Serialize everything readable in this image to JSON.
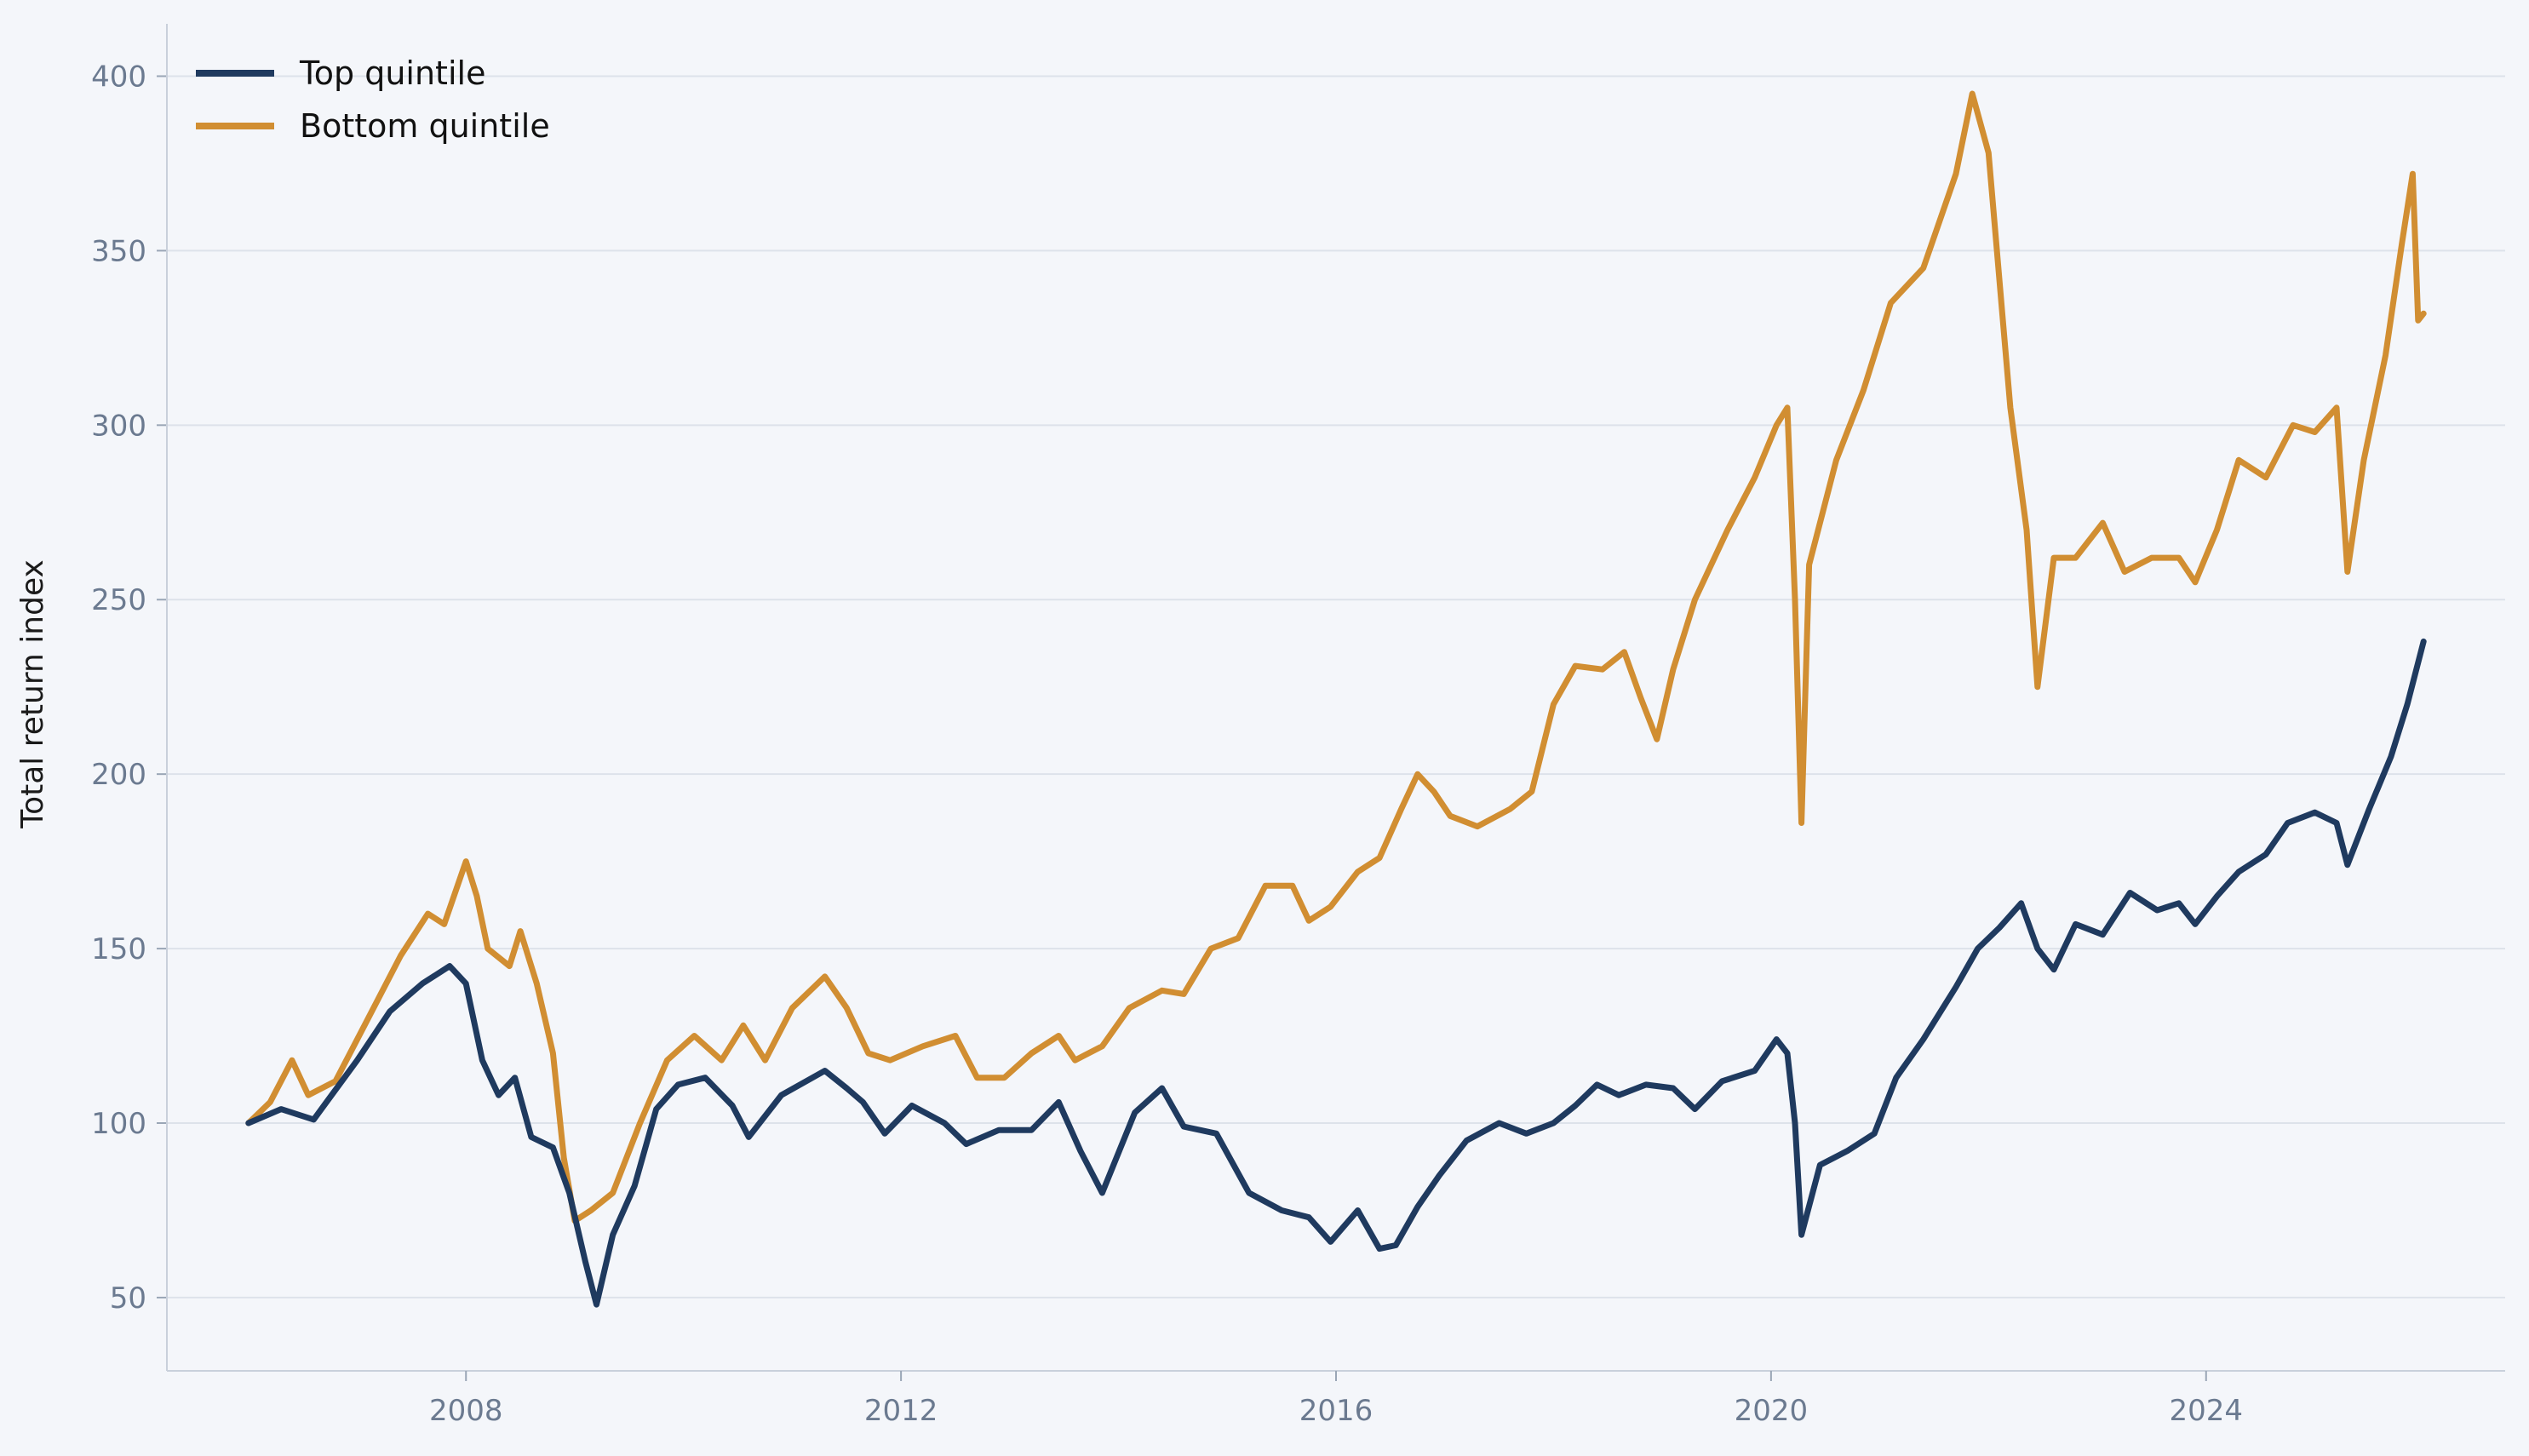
{
  "chart_data": {
    "type": "line",
    "title": "",
    "xlabel": "",
    "ylabel": "Total return index",
    "xlim": [
      2005.25,
      2026.75
    ],
    "ylim": [
      29,
      415
    ],
    "xticks": [
      2008,
      2012,
      2016,
      2020,
      2024
    ],
    "xtick_labels": [
      "2008",
      "2012",
      "2016",
      "2020",
      "2024"
    ],
    "yticks": [
      50,
      100,
      150,
      200,
      250,
      300,
      350,
      400
    ],
    "ytick_labels": [
      "50",
      "100",
      "150",
      "200",
      "250",
      "300",
      "350",
      "400"
    ],
    "grid": "horizontal",
    "legend_position": "top-left",
    "series": [
      {
        "name": "Top quintile",
        "color": "#1f3a5f",
        "points": [
          [
            2006.0,
            100
          ],
          [
            2006.3,
            104
          ],
          [
            2006.6,
            101
          ],
          [
            2007.0,
            118
          ],
          [
            2007.3,
            132
          ],
          [
            2007.6,
            140
          ],
          [
            2007.85,
            145
          ],
          [
            2008.0,
            140
          ],
          [
            2008.15,
            118
          ],
          [
            2008.3,
            108
          ],
          [
            2008.45,
            113
          ],
          [
            2008.6,
            96
          ],
          [
            2008.8,
            93
          ],
          [
            2008.95,
            80
          ],
          [
            2009.1,
            60
          ],
          [
            2009.2,
            48
          ],
          [
            2009.35,
            68
          ],
          [
            2009.55,
            82
          ],
          [
            2009.75,
            104
          ],
          [
            2009.95,
            111
          ],
          [
            2010.2,
            113
          ],
          [
            2010.45,
            105
          ],
          [
            2010.6,
            96
          ],
          [
            2010.9,
            108
          ],
          [
            2011.3,
            115
          ],
          [
            2011.5,
            110
          ],
          [
            2011.65,
            106
          ],
          [
            2011.85,
            97
          ],
          [
            2012.1,
            105
          ],
          [
            2012.4,
            100
          ],
          [
            2012.6,
            94
          ],
          [
            2012.9,
            98
          ],
          [
            2013.2,
            98
          ],
          [
            2013.45,
            106
          ],
          [
            2013.65,
            92
          ],
          [
            2013.85,
            80
          ],
          [
            2014.15,
            103
          ],
          [
            2014.4,
            110
          ],
          [
            2014.6,
            99
          ],
          [
            2014.9,
            97
          ],
          [
            2015.2,
            80
          ],
          [
            2015.5,
            75
          ],
          [
            2015.75,
            73
          ],
          [
            2015.95,
            66
          ],
          [
            2016.2,
            75
          ],
          [
            2016.4,
            64
          ],
          [
            2016.55,
            65
          ],
          [
            2016.75,
            76
          ],
          [
            2016.95,
            85
          ],
          [
            2017.2,
            95
          ],
          [
            2017.5,
            100
          ],
          [
            2017.75,
            97
          ],
          [
            2018.0,
            100
          ],
          [
            2018.2,
            105
          ],
          [
            2018.4,
            111
          ],
          [
            2018.6,
            108
          ],
          [
            2018.85,
            111
          ],
          [
            2019.1,
            110
          ],
          [
            2019.3,
            104
          ],
          [
            2019.55,
            112
          ],
          [
            2019.85,
            115
          ],
          [
            2020.05,
            124
          ],
          [
            2020.15,
            120
          ],
          [
            2020.22,
            100
          ],
          [
            2020.28,
            68
          ],
          [
            2020.45,
            88
          ],
          [
            2020.7,
            92
          ],
          [
            2020.95,
            97
          ],
          [
            2021.15,
            113
          ],
          [
            2021.4,
            124
          ],
          [
            2021.7,
            139
          ],
          [
            2021.9,
            150
          ],
          [
            2022.1,
            156
          ],
          [
            2022.3,
            163
          ],
          [
            2022.45,
            150
          ],
          [
            2022.6,
            144
          ],
          [
            2022.8,
            157
          ],
          [
            2023.05,
            154
          ],
          [
            2023.3,
            166
          ],
          [
            2023.55,
            161
          ],
          [
            2023.75,
            163
          ],
          [
            2023.9,
            157
          ],
          [
            2024.1,
            165
          ],
          [
            2024.3,
            172
          ],
          [
            2024.55,
            177
          ],
          [
            2024.75,
            186
          ],
          [
            2025.0,
            189
          ],
          [
            2025.2,
            186
          ],
          [
            2025.3,
            174
          ],
          [
            2025.5,
            190
          ],
          [
            2025.7,
            205
          ],
          [
            2025.85,
            220
          ],
          [
            2026.0,
            238
          ]
        ]
      },
      {
        "name": "Bottom quintile",
        "color": "#d18e32",
        "points": [
          [
            2006.0,
            100
          ],
          [
            2006.2,
            106
          ],
          [
            2006.4,
            118
          ],
          [
            2006.55,
            108
          ],
          [
            2006.8,
            112
          ],
          [
            2007.1,
            130
          ],
          [
            2007.4,
            148
          ],
          [
            2007.65,
            160
          ],
          [
            2007.8,
            157
          ],
          [
            2008.0,
            175
          ],
          [
            2008.1,
            165
          ],
          [
            2008.2,
            150
          ],
          [
            2008.4,
            145
          ],
          [
            2008.5,
            155
          ],
          [
            2008.65,
            140
          ],
          [
            2008.8,
            120
          ],
          [
            2008.9,
            90
          ],
          [
            2009.0,
            72
          ],
          [
            2009.15,
            75
          ],
          [
            2009.35,
            80
          ],
          [
            2009.6,
            100
          ],
          [
            2009.85,
            118
          ],
          [
            2010.1,
            125
          ],
          [
            2010.35,
            118
          ],
          [
            2010.55,
            128
          ],
          [
            2010.75,
            118
          ],
          [
            2011.0,
            133
          ],
          [
            2011.3,
            142
          ],
          [
            2011.5,
            133
          ],
          [
            2011.7,
            120
          ],
          [
            2011.9,
            118
          ],
          [
            2012.2,
            122
          ],
          [
            2012.5,
            125
          ],
          [
            2012.7,
            113
          ],
          [
            2012.95,
            113
          ],
          [
            2013.2,
            120
          ],
          [
            2013.45,
            125
          ],
          [
            2013.6,
            118
          ],
          [
            2013.85,
            122
          ],
          [
            2014.1,
            133
          ],
          [
            2014.4,
            138
          ],
          [
            2014.6,
            137
          ],
          [
            2014.85,
            150
          ],
          [
            2015.1,
            153
          ],
          [
            2015.35,
            168
          ],
          [
            2015.6,
            168
          ],
          [
            2015.75,
            158
          ],
          [
            2015.95,
            162
          ],
          [
            2016.2,
            172
          ],
          [
            2016.4,
            176
          ],
          [
            2016.6,
            190
          ],
          [
            2016.75,
            200
          ],
          [
            2016.9,
            195
          ],
          [
            2017.05,
            188
          ],
          [
            2017.3,
            185
          ],
          [
            2017.6,
            190
          ],
          [
            2017.8,
            195
          ],
          [
            2018.0,
            220
          ],
          [
            2018.2,
            231
          ],
          [
            2018.45,
            230
          ],
          [
            2018.65,
            235
          ],
          [
            2018.8,
            222
          ],
          [
            2018.95,
            210
          ],
          [
            2019.1,
            230
          ],
          [
            2019.3,
            250
          ],
          [
            2019.6,
            270
          ],
          [
            2019.85,
            285
          ],
          [
            2020.05,
            300
          ],
          [
            2020.15,
            305
          ],
          [
            2020.22,
            250
          ],
          [
            2020.28,
            186
          ],
          [
            2020.35,
            260
          ],
          [
            2020.6,
            290
          ],
          [
            2020.85,
            310
          ],
          [
            2021.1,
            335
          ],
          [
            2021.4,
            345
          ],
          [
            2021.7,
            372
          ],
          [
            2021.85,
            395
          ],
          [
            2022.0,
            378
          ],
          [
            2022.2,
            305
          ],
          [
            2022.35,
            270
          ],
          [
            2022.45,
            225
          ],
          [
            2022.6,
            262
          ],
          [
            2022.8,
            262
          ],
          [
            2023.05,
            272
          ],
          [
            2023.25,
            258
          ],
          [
            2023.5,
            262
          ],
          [
            2023.75,
            262
          ],
          [
            2023.9,
            255
          ],
          [
            2024.1,
            270
          ],
          [
            2024.3,
            290
          ],
          [
            2024.55,
            285
          ],
          [
            2024.8,
            300
          ],
          [
            2025.0,
            298
          ],
          [
            2025.2,
            305
          ],
          [
            2025.3,
            258
          ],
          [
            2025.45,
            290
          ],
          [
            2025.65,
            320
          ],
          [
            2025.8,
            352
          ],
          [
            2025.9,
            372
          ],
          [
            2025.95,
            330
          ],
          [
            2026.0,
            332
          ]
        ]
      }
    ]
  }
}
